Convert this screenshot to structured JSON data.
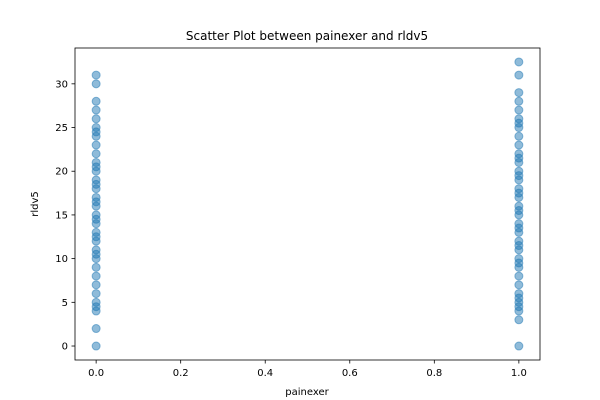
{
  "chart_data": {
    "type": "scatter",
    "title": "Scatter Plot between painexer and rldv5",
    "xlabel": "painexer",
    "ylabel": "rldv5",
    "xlim": [
      -0.05,
      1.05
    ],
    "ylim": [
      -1.6,
      34.1
    ],
    "xticks": [
      0.0,
      0.2,
      0.4,
      0.6,
      0.8,
      1.0
    ],
    "xtick_labels": [
      "0.0",
      "0.2",
      "0.4",
      "0.6",
      "0.8",
      "1.0"
    ],
    "yticks": [
      0,
      5,
      10,
      15,
      20,
      25,
      30
    ],
    "ytick_labels": [
      "0",
      "5",
      "10",
      "15",
      "20",
      "25",
      "30"
    ],
    "grid": false,
    "legend": "none",
    "marker_color": "#1f77b4",
    "marker_alpha": 0.5,
    "series": [
      {
        "x": [
          0,
          0,
          0,
          0,
          0,
          0,
          0,
          0,
          0,
          0,
          0,
          0,
          0,
          0,
          0,
          0,
          0,
          0,
          0,
          0,
          0,
          0,
          0,
          0,
          0,
          0,
          0,
          0,
          0,
          0,
          0,
          0,
          0,
          0,
          0,
          0,
          0
        ],
        "y": [
          0,
          2,
          4,
          5,
          6,
          7,
          8,
          9,
          10,
          11,
          12,
          13,
          14,
          15,
          16,
          17,
          18,
          19,
          20,
          21,
          22,
          23,
          24,
          25,
          26,
          27,
          28,
          30,
          31,
          4.5,
          10.5,
          12.5,
          14.5,
          16.5,
          18.5,
          20.5,
          24.5
        ]
      },
      {
        "x": [
          1,
          1,
          1,
          1,
          1,
          1,
          1,
          1,
          1,
          1,
          1,
          1,
          1,
          1,
          1,
          1,
          1,
          1,
          1,
          1,
          1,
          1,
          1,
          1,
          1,
          1,
          1,
          1,
          1,
          1,
          1,
          1,
          1,
          1,
          1,
          1,
          1,
          1,
          1,
          1
        ],
        "y": [
          0,
          3,
          4,
          5,
          6,
          7,
          8,
          9,
          10,
          11,
          12,
          13,
          14,
          15,
          16,
          17,
          18,
          19,
          20,
          21,
          22,
          23,
          24,
          25,
          26,
          27,
          28,
          29,
          31,
          32.5,
          4.5,
          5.5,
          9.5,
          11.5,
          13.5,
          15.5,
          17.5,
          19.5,
          21.5,
          25.5
        ]
      }
    ]
  }
}
